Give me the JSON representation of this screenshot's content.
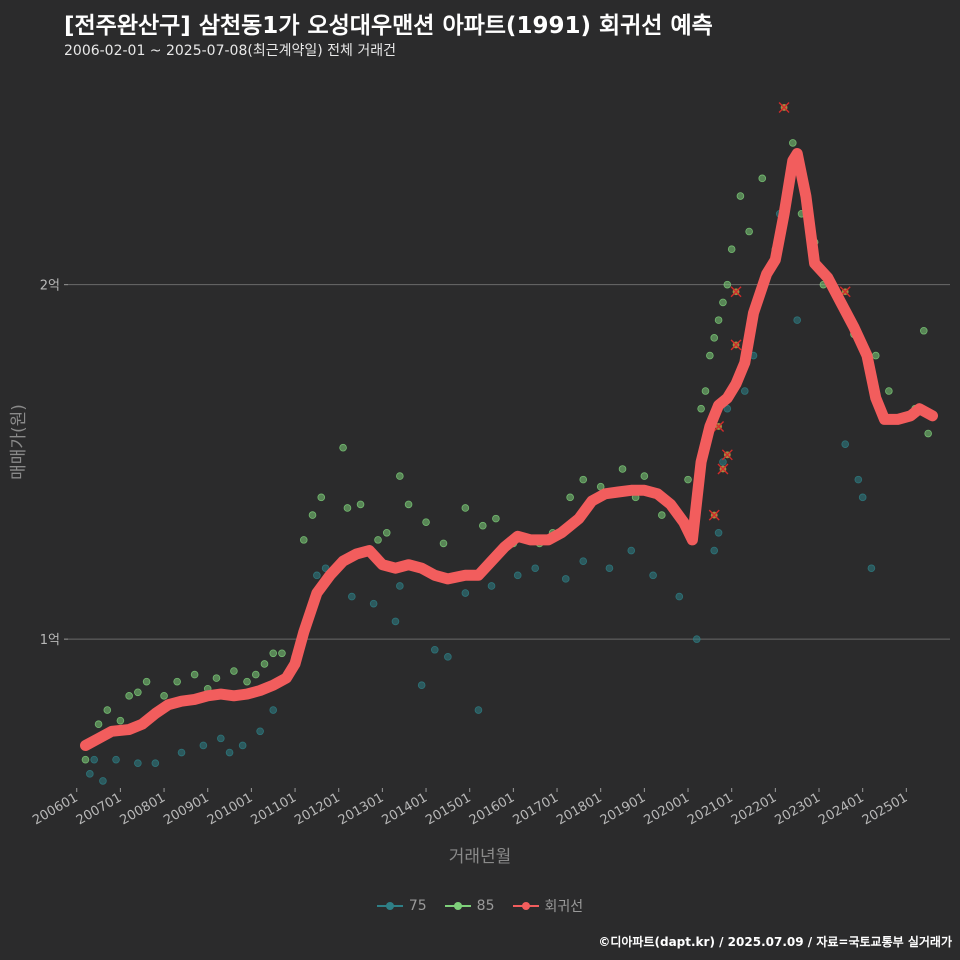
{
  "header": {
    "title": "[전주완산구] 삼천동1가 오성대우맨션 아파트(1991) 회귀선 예측",
    "subtitle": "2006-02-01 ~ 2025-07-08(최근계약일) 전체 거래건"
  },
  "footer": {
    "credit": "©디아파트(dapt.kr) / 2025.07.09 / 자료=국토교통부 실거래가"
  },
  "colors": {
    "s75": "#2e7f86",
    "s85": "#7ed07a",
    "reg": "#f25d5d",
    "grid": "#6a6a6a"
  },
  "chart_data": {
    "type": "scatter",
    "xlabel": "거래년월",
    "ylabel": "매매가(원)",
    "x_ticks": [
      "200601",
      "200701",
      "200801",
      "200901",
      "201001",
      "201101",
      "201201",
      "201301",
      "201401",
      "201501",
      "201601",
      "201701",
      "201801",
      "201901",
      "202001",
      "202101",
      "202201",
      "202301",
      "202401",
      "202501"
    ],
    "x_range": [
      2005.8,
      2026.0
    ],
    "y_ticks": [
      {
        "value": 100000000,
        "label": "1억"
      },
      {
        "value": 200000000,
        "label": "2억"
      }
    ],
    "y_range": [
      58000000,
      260000000
    ],
    "grid": "horizontal",
    "legend_position": "bottom",
    "series": [
      {
        "name": "75",
        "points": [
          [
            2006.3,
            62000000
          ],
          [
            2006.4,
            66000000
          ],
          [
            2006.6,
            60000000
          ],
          [
            2006.9,
            66000000
          ],
          [
            2007.4,
            65000000
          ],
          [
            2007.8,
            65000000
          ],
          [
            2008.4,
            68000000
          ],
          [
            2008.9,
            70000000
          ],
          [
            2009.3,
            72000000
          ],
          [
            2009.5,
            68000000
          ],
          [
            2009.8,
            70000000
          ],
          [
            2010.2,
            74000000
          ],
          [
            2010.5,
            80000000
          ],
          [
            2011.0,
            95000000
          ],
          [
            2011.5,
            118000000
          ],
          [
            2011.7,
            120000000
          ],
          [
            2012.3,
            112000000
          ],
          [
            2012.8,
            110000000
          ],
          [
            2013.3,
            105000000
          ],
          [
            2013.4,
            115000000
          ],
          [
            2013.9,
            87000000
          ],
          [
            2014.2,
            97000000
          ],
          [
            2014.5,
            95000000
          ],
          [
            2014.9,
            113000000
          ],
          [
            2015.2,
            80000000
          ],
          [
            2015.5,
            115000000
          ],
          [
            2016.1,
            118000000
          ],
          [
            2016.5,
            120000000
          ],
          [
            2017.2,
            117000000
          ],
          [
            2017.6,
            122000000
          ],
          [
            2018.2,
            120000000
          ],
          [
            2018.7,
            125000000
          ],
          [
            2019.2,
            118000000
          ],
          [
            2019.8,
            112000000
          ],
          [
            2020.2,
            100000000
          ],
          [
            2020.6,
            125000000
          ],
          [
            2020.7,
            130000000
          ],
          [
            2020.8,
            150000000
          ],
          [
            2020.9,
            165000000
          ],
          [
            2021.0,
            170000000
          ],
          [
            2021.3,
            170000000
          ],
          [
            2021.5,
            180000000
          ],
          [
            2022.1,
            220000000
          ],
          [
            2022.5,
            190000000
          ],
          [
            2023.6,
            155000000
          ],
          [
            2023.9,
            145000000
          ],
          [
            2024.0,
            140000000
          ],
          [
            2024.2,
            120000000
          ]
        ]
      },
      {
        "name": "85",
        "points": [
          [
            2006.2,
            66000000
          ],
          [
            2006.5,
            76000000
          ],
          [
            2006.7,
            80000000
          ],
          [
            2007.0,
            77000000
          ],
          [
            2007.2,
            84000000
          ],
          [
            2007.4,
            85000000
          ],
          [
            2007.6,
            88000000
          ],
          [
            2008.0,
            84000000
          ],
          [
            2008.3,
            88000000
          ],
          [
            2008.7,
            90000000
          ],
          [
            2009.0,
            86000000
          ],
          [
            2009.2,
            89000000
          ],
          [
            2009.6,
            91000000
          ],
          [
            2009.9,
            88000000
          ],
          [
            2010.1,
            90000000
          ],
          [
            2010.3,
            93000000
          ],
          [
            2010.5,
            96000000
          ],
          [
            2010.7,
            96000000
          ],
          [
            2011.2,
            128000000
          ],
          [
            2011.4,
            135000000
          ],
          [
            2011.6,
            140000000
          ],
          [
            2012.1,
            154000000
          ],
          [
            2012.2,
            137000000
          ],
          [
            2012.5,
            138000000
          ],
          [
            2012.9,
            128000000
          ],
          [
            2013.1,
            130000000
          ],
          [
            2013.4,
            146000000
          ],
          [
            2013.6,
            138000000
          ],
          [
            2014.0,
            133000000
          ],
          [
            2014.4,
            127000000
          ],
          [
            2014.9,
            137000000
          ],
          [
            2015.3,
            132000000
          ],
          [
            2015.6,
            134000000
          ],
          [
            2016.0,
            127000000
          ],
          [
            2016.6,
            127000000
          ],
          [
            2016.9,
            130000000
          ],
          [
            2017.3,
            140000000
          ],
          [
            2017.6,
            145000000
          ],
          [
            2018.0,
            143000000
          ],
          [
            2018.5,
            148000000
          ],
          [
            2018.8,
            140000000
          ],
          [
            2019.0,
            146000000
          ],
          [
            2019.4,
            135000000
          ],
          [
            2020.0,
            145000000
          ],
          [
            2020.3,
            165000000
          ],
          [
            2020.4,
            170000000
          ],
          [
            2020.5,
            180000000
          ],
          [
            2020.6,
            185000000
          ],
          [
            2020.7,
            190000000
          ],
          [
            2020.8,
            195000000
          ],
          [
            2020.9,
            200000000
          ],
          [
            2021.0,
            210000000
          ],
          [
            2021.2,
            225000000
          ],
          [
            2021.4,
            215000000
          ],
          [
            2021.7,
            230000000
          ],
          [
            2022.0,
            210000000
          ],
          [
            2022.4,
            240000000
          ],
          [
            2022.6,
            220000000
          ],
          [
            2022.9,
            212000000
          ],
          [
            2023.1,
            200000000
          ],
          [
            2023.5,
            195000000
          ],
          [
            2023.8,
            186000000
          ],
          [
            2024.3,
            180000000
          ],
          [
            2024.6,
            170000000
          ],
          [
            2024.9,
            162000000
          ],
          [
            2025.2,
            165000000
          ],
          [
            2025.4,
            187000000
          ],
          [
            2025.5,
            158000000
          ]
        ]
      }
    ],
    "excluded_points": [
      [
        2020.7,
        160000000
      ],
      [
        2020.8,
        148000000
      ],
      [
        2020.9,
        152000000
      ],
      [
        2021.1,
        183000000
      ],
      [
        2021.1,
        198000000
      ],
      [
        2022.2,
        250000000
      ],
      [
        2023.6,
        198000000
      ],
      [
        2020.6,
        135000000
      ]
    ],
    "regression": {
      "name": "회귀선",
      "points": [
        [
          2006.2,
          70000000
        ],
        [
          2006.5,
          72000000
        ],
        [
          2006.8,
          74000000
        ],
        [
          2007.2,
          74500000
        ],
        [
          2007.5,
          76000000
        ],
        [
          2007.8,
          79000000
        ],
        [
          2008.1,
          81500000
        ],
        [
          2008.4,
          82500000
        ],
        [
          2008.7,
          83000000
        ],
        [
          2009.0,
          84000000
        ],
        [
          2009.3,
          84500000
        ],
        [
          2009.6,
          84000000
        ],
        [
          2009.9,
          84500000
        ],
        [
          2010.2,
          85500000
        ],
        [
          2010.5,
          87000000
        ],
        [
          2010.8,
          89000000
        ],
        [
          2011.0,
          93000000
        ],
        [
          2011.2,
          102000000
        ],
        [
          2011.5,
          113000000
        ],
        [
          2011.8,
          118000000
        ],
        [
          2012.1,
          122000000
        ],
        [
          2012.4,
          124000000
        ],
        [
          2012.7,
          125000000
        ],
        [
          2013.0,
          121000000
        ],
        [
          2013.3,
          120000000
        ],
        [
          2013.6,
          121000000
        ],
        [
          2013.9,
          120000000
        ],
        [
          2014.2,
          118000000
        ],
        [
          2014.5,
          117000000
        ],
        [
          2014.9,
          118000000
        ],
        [
          2015.2,
          118000000
        ],
        [
          2015.5,
          122000000
        ],
        [
          2015.8,
          126000000
        ],
        [
          2016.1,
          129000000
        ],
        [
          2016.4,
          128000000
        ],
        [
          2016.8,
          128000000
        ],
        [
          2017.1,
          130000000
        ],
        [
          2017.5,
          134000000
        ],
        [
          2017.8,
          139000000
        ],
        [
          2018.1,
          141000000
        ],
        [
          2018.4,
          141500000
        ],
        [
          2018.7,
          142000000
        ],
        [
          2019.0,
          142000000
        ],
        [
          2019.3,
          141000000
        ],
        [
          2019.6,
          138000000
        ],
        [
          2019.9,
          133000000
        ],
        [
          2020.1,
          128000000
        ],
        [
          2020.3,
          150000000
        ],
        [
          2020.5,
          160000000
        ],
        [
          2020.7,
          166000000
        ],
        [
          2020.9,
          168000000
        ],
        [
          2021.1,
          172000000
        ],
        [
          2021.3,
          178000000
        ],
        [
          2021.5,
          192000000
        ],
        [
          2021.8,
          203000000
        ],
        [
          2022.0,
          207000000
        ],
        [
          2022.2,
          220000000
        ],
        [
          2022.4,
          235000000
        ],
        [
          2022.5,
          237000000
        ],
        [
          2022.7,
          225000000
        ],
        [
          2022.9,
          206000000
        ],
        [
          2023.2,
          202000000
        ],
        [
          2023.5,
          195000000
        ],
        [
          2023.8,
          188000000
        ],
        [
          2024.1,
          180000000
        ],
        [
          2024.3,
          168000000
        ],
        [
          2024.5,
          162000000
        ],
        [
          2024.8,
          162000000
        ],
        [
          2025.1,
          163000000
        ],
        [
          2025.3,
          165000000
        ],
        [
          2025.6,
          163000000
        ]
      ]
    }
  }
}
